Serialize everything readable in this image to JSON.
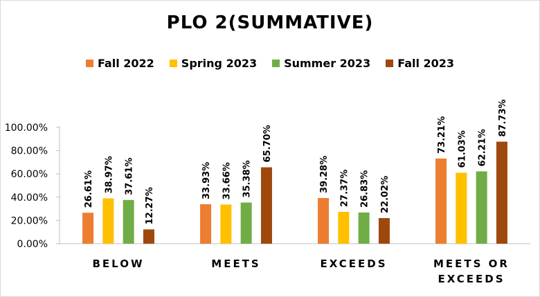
{
  "chart_data": {
    "type": "bar",
    "title": "PLO 2(SUMMATIVE)",
    "categories": [
      "BELOW",
      "MEETS",
      "EXCEEDS",
      "MEETS OR EXCEEDS"
    ],
    "series": [
      {
        "name": "Fall 2022",
        "color": "#ED7D31",
        "values": [
          26.61,
          33.93,
          39.28,
          73.21
        ],
        "labels": [
          "26.61%",
          "33.93%",
          "39.28%",
          "73.21%"
        ]
      },
      {
        "name": "Spring 2023",
        "color": "#FFC000",
        "values": [
          38.97,
          33.66,
          27.37,
          61.03
        ],
        "labels": [
          "38.97%",
          "33.66%",
          "27.37%",
          "61.03%"
        ]
      },
      {
        "name": "Summer 2023",
        "color": "#70AD47",
        "values": [
          37.61,
          35.38,
          26.83,
          62.21
        ],
        "labels": [
          "37.61%",
          "35.38%",
          "26.83%",
          "62.21%"
        ]
      },
      {
        "name": "Fall 2023",
        "color": "#9E480E",
        "values": [
          12.27,
          65.7,
          22.02,
          87.73
        ],
        "labels": [
          "12.27%",
          "65.70%",
          "22.02%",
          "87.73%"
        ]
      }
    ],
    "ylim": [
      0,
      100
    ],
    "yticks": [
      0,
      20,
      40,
      60,
      80,
      100
    ],
    "ytick_labels": [
      "0.00%",
      "20.00%",
      "40.00%",
      "60.00%",
      "80.00%",
      "100.00%"
    ],
    "grid": false,
    "legend_position": "top",
    "xlabel": "",
    "ylabel": ""
  }
}
